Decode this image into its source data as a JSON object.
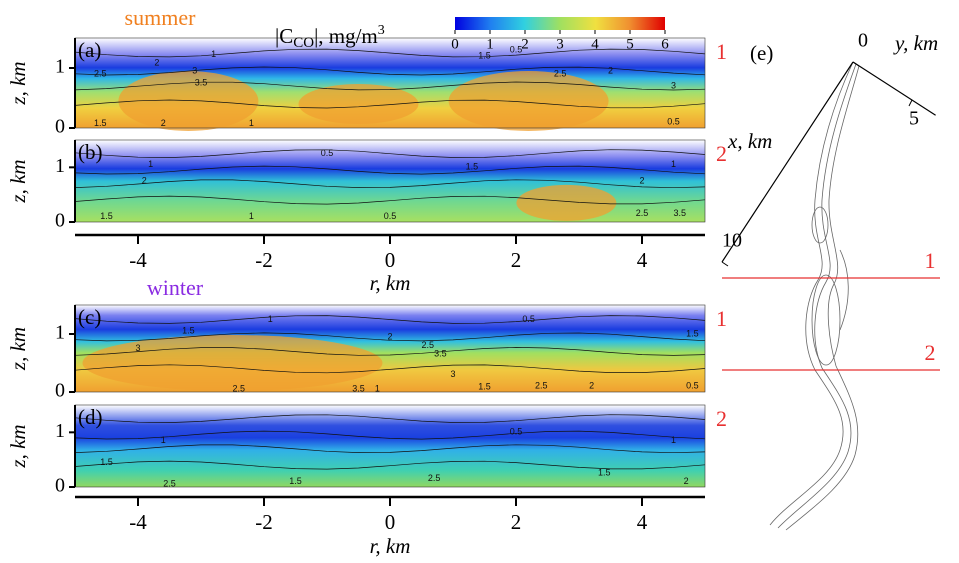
{
  "chart_data": [
    {
      "type": "contour",
      "panel": "(a)",
      "title": "summer",
      "section": "1",
      "ylabel": "z, km",
      "xlim": [
        -5,
        5
      ],
      "ylim": [
        0,
        1.5
      ],
      "yticks": [
        0,
        1
      ],
      "contour_labels": [
        2.5,
        2,
        1,
        3,
        3.5,
        1.5,
        0.5,
        2.5,
        2,
        3,
        0.5,
        1.5,
        2,
        1
      ]
    },
    {
      "type": "contour",
      "panel": "(b)",
      "section": "2",
      "ylabel": "z, km",
      "xlim": [
        -5,
        5
      ],
      "ylim": [
        0,
        1.5
      ],
      "yticks": [
        0,
        1
      ],
      "xticks": [
        -4,
        -2,
        0,
        2,
        4
      ],
      "xlabel": "r, km",
      "contour_labels": [
        1,
        0.5,
        1.5,
        1,
        2,
        2,
        1.5,
        1,
        0.5,
        2.5,
        3.5
      ]
    },
    {
      "type": "contour",
      "panel": "(c)",
      "title": "winter",
      "section": "1",
      "ylabel": "z, km",
      "xlim": [
        -5,
        5
      ],
      "ylim": [
        0,
        1.5
      ],
      "yticks": [
        0,
        1
      ],
      "contour_labels": [
        1,
        1.5,
        0.5,
        2,
        2.5,
        3,
        3.5,
        3,
        2.5,
        3.5,
        1,
        1.5,
        2.5,
        2,
        0.5,
        1.5
      ]
    },
    {
      "type": "contour",
      "panel": "(d)",
      "section": "2",
      "ylabel": "z, km",
      "xlim": [
        -5,
        5
      ],
      "ylim": [
        0,
        1.5
      ],
      "yticks": [
        0,
        1
      ],
      "xticks": [
        -4,
        -2,
        0,
        2,
        4
      ],
      "xlabel": "r, km",
      "contour_labels": [
        1,
        0.5,
        1,
        1.5,
        1.5,
        2.5,
        1.5,
        2,
        2.5
      ]
    },
    {
      "type": "colorbar",
      "label": {
        "main": "|C",
        "sub": "CO",
        "rest": "|, mg/m",
        "sup": "3"
      },
      "clim": [
        0,
        6
      ],
      "ticks": [
        0,
        1,
        2,
        3,
        4,
        5,
        6
      ]
    },
    {
      "type": "map",
      "panel": "(e)",
      "xlabel": "x, km",
      "ylabel": "y, km",
      "xticks": [
        0,
        10
      ],
      "yticks": [
        5
      ],
      "sections": [
        "1",
        "2"
      ]
    }
  ]
}
